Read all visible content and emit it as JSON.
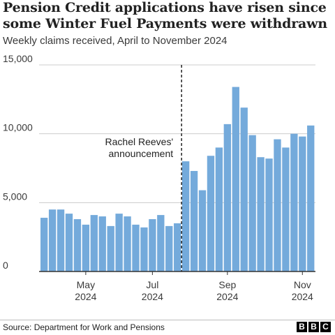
{
  "title": "Pension Credit applications have risen since some Winter Fuel Payments were withdrawn",
  "subtitle": "Weekly claims received, April to November 2024",
  "source": "Source: Department for Work and Pensions",
  "logo": [
    "B",
    "B",
    "C"
  ],
  "chart_data": {
    "type": "bar",
    "title": "Pension Credit applications have risen since some Winter Fuel Payments were withdrawn",
    "subtitle": "Weekly claims received, April to November 2024",
    "xlabel": "",
    "ylabel": "",
    "ylim": [
      0,
      15000
    ],
    "yticks": [
      0,
      5000,
      10000,
      15000
    ],
    "ytick_labels": [
      "0",
      "5,000",
      "10,000",
      "15,000"
    ],
    "grid": true,
    "bar_color": "#74aadb",
    "x_tick_labels": [
      {
        "label": "May",
        "year": "2024",
        "bar_index": 5
      },
      {
        "label": "Jul",
        "year": "2024",
        "bar_index": 13
      },
      {
        "label": "Sep",
        "year": "2024",
        "bar_index": 22
      },
      {
        "label": "Nov",
        "year": "2024",
        "bar_index": 31
      }
    ],
    "values": [
      3900,
      4500,
      4500,
      4200,
      3800,
      3400,
      4100,
      4000,
      3300,
      4200,
      4000,
      3400,
      3200,
      3800,
      4100,
      3300,
      3500,
      8000,
      7300,
      5900,
      8400,
      9000,
      10700,
      13400,
      11900,
      9900,
      8300,
      8200,
      9600,
      9000,
      10000,
      9800,
      10600
    ],
    "annotation": {
      "text_lines": [
        "Rachel Reeves'",
        "announcement"
      ],
      "after_bar_index": 16
    }
  }
}
